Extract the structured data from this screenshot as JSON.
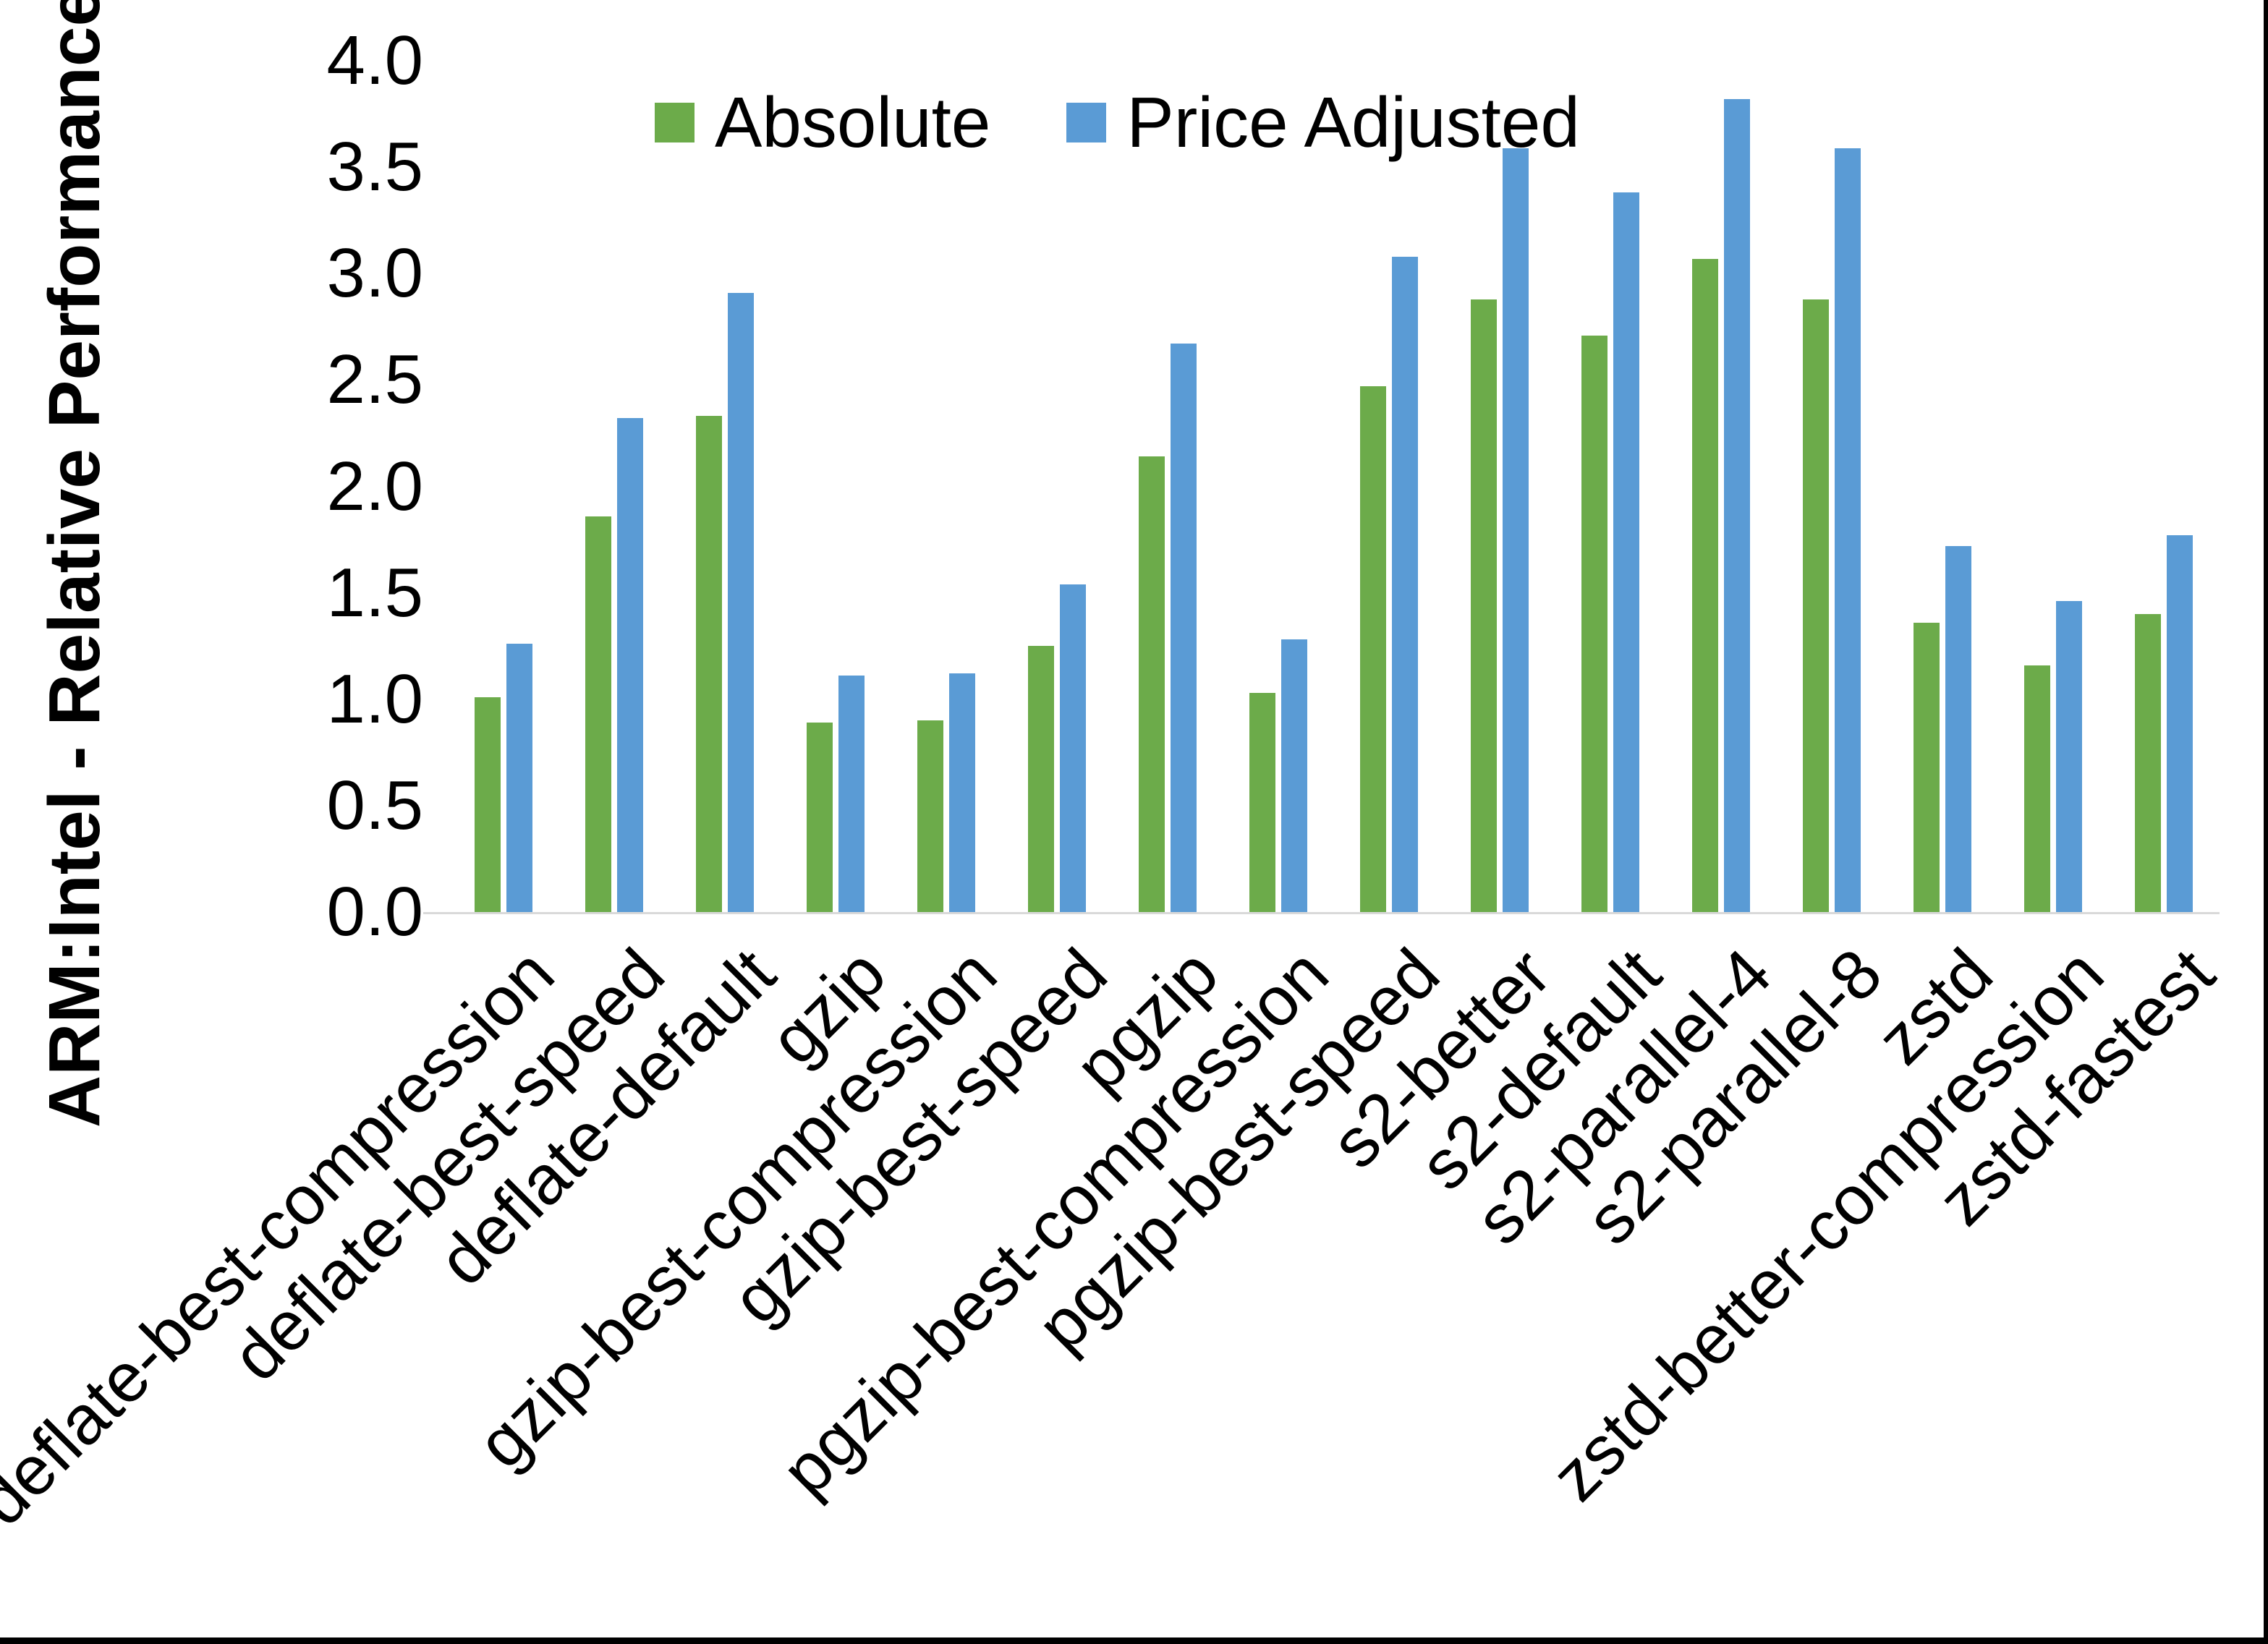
{
  "chart_data": {
    "type": "bar",
    "title": "",
    "xlabel": "",
    "ylabel": "ARM:Intel - Relative Performance",
    "ylim": [
      0.0,
      4.0
    ],
    "ytick_step": 0.5,
    "yticks": [
      "0.0",
      "0.5",
      "1.0",
      "1.5",
      "2.0",
      "2.5",
      "3.0",
      "3.5",
      "4.0"
    ],
    "grid": false,
    "legend_position": "top-center",
    "categories": [
      "deflate-best-compression",
      "deflate-best-speed",
      "deflate-default",
      "gzip",
      "gzip-best-compression",
      "gzip-best-speed",
      "pgzip",
      "pgzip-best-compression",
      "pgzip-best-speed",
      "s2-better",
      "s2-default",
      "s2-parallel-4",
      "s2-parallel-8",
      "zstd",
      "zstd-better-compression",
      "zstd-fastest"
    ],
    "series": [
      {
        "name": "Absolute",
        "color": "#6CAB4A",
        "values": [
          1.01,
          1.86,
          2.33,
          0.89,
          0.9,
          1.25,
          2.14,
          1.03,
          2.47,
          2.88,
          2.71,
          3.07,
          2.88,
          1.36,
          1.16,
          1.4
        ]
      },
      {
        "name": "Price Adjusted",
        "color": "#5A9BD5",
        "values": [
          1.26,
          2.32,
          2.91,
          1.11,
          1.12,
          1.54,
          2.67,
          1.28,
          3.08,
          3.59,
          3.38,
          3.82,
          3.59,
          1.72,
          1.46,
          1.77
        ]
      }
    ]
  },
  "frame": {
    "border_color": "#000000",
    "baseline_color": "#d9d9d9"
  }
}
